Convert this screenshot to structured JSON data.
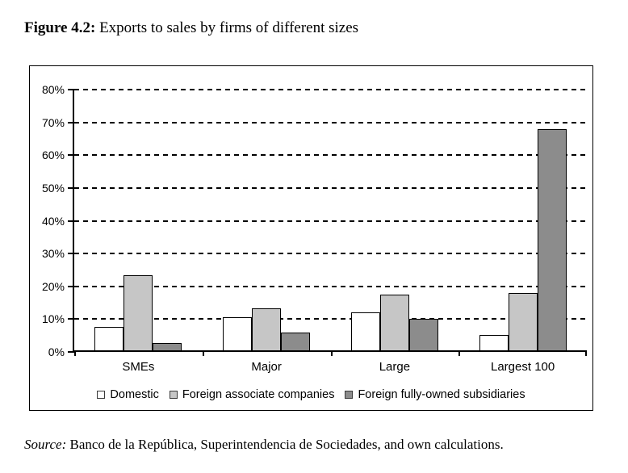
{
  "page": {
    "title_label": "Figure 4.2:",
    "title_text": " Exports to sales by firms of different sizes",
    "source_label": "Source:",
    "source_text": " Banco de la República, Superintendencia de Sociedades, and own calculations."
  },
  "chart_data": {
    "type": "bar",
    "title": "Exports to sales by firms of different sizes",
    "categories": [
      "SMEs",
      "Major",
      "Large",
      "Largest 100"
    ],
    "series": [
      {
        "name": "Domestic",
        "color": "#ffffff",
        "values": [
          7.2,
          10.0,
          11.6,
          4.6
        ]
      },
      {
        "name": "Foreign associate companies",
        "color": "#c6c6c6",
        "values": [
          23.0,
          12.8,
          16.9,
          17.6
        ]
      },
      {
        "name": "Foreign fully-owned subsidiaries",
        "color": "#8c8c8c",
        "values": [
          2.2,
          5.5,
          9.7,
          67.5
        ]
      }
    ],
    "xlabel": "",
    "ylabel": "",
    "ylim": [
      0,
      80
    ],
    "ytick_step": 10,
    "ytick_labels": [
      "0%",
      "10%",
      "20%",
      "30%",
      "40%",
      "50%",
      "60%",
      "70%",
      "80%"
    ],
    "grid": "horizontal-dashed",
    "legend_position": "bottom",
    "axis_color": "#000000"
  }
}
